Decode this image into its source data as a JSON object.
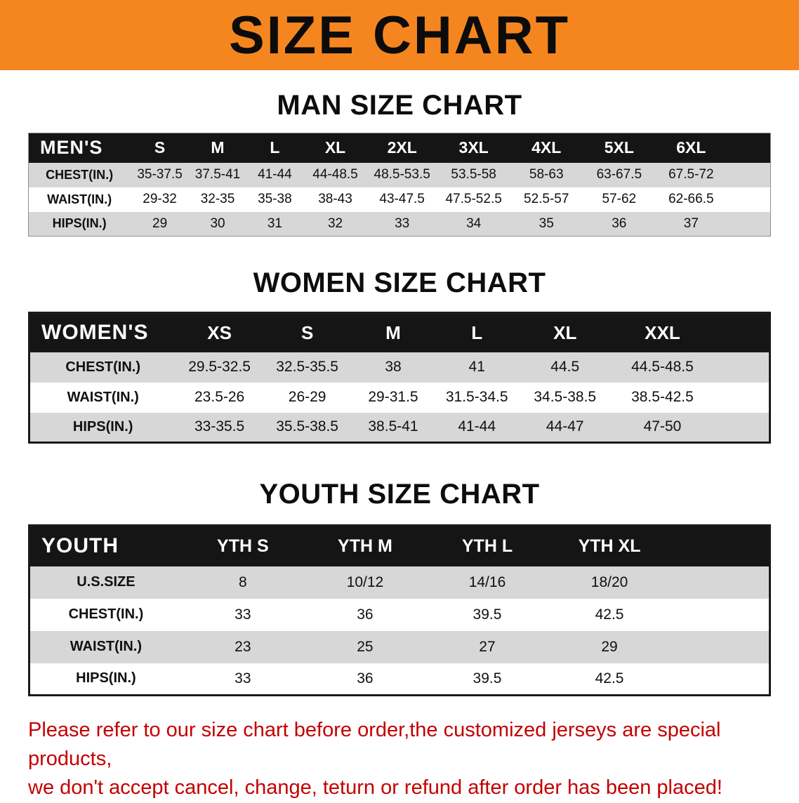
{
  "colors": {
    "banner-bg": "#f5861f",
    "header-bg": "#151515",
    "row-gray": "#d7d7d7",
    "disclaimer-red": "#c40000"
  },
  "banner": {
    "title": "SIZE CHART"
  },
  "men": {
    "heading": "MAN SIZE CHART",
    "table": {
      "header": [
        "MEN'S",
        "S",
        "M",
        "L",
        "XL",
        "2XL",
        "3XL",
        "4XL",
        "5XL",
        "6XL"
      ],
      "rows": [
        [
          "CHEST(IN.)",
          "35-37.5",
          "37.5-41",
          "41-44",
          "44-48.5",
          "48.5-53.5",
          "53.5-58",
          "58-63",
          "63-67.5",
          "67.5-72"
        ],
        [
          "WAIST(IN.)",
          "29-32",
          "32-35",
          "35-38",
          "38-43",
          "43-47.5",
          "47.5-52.5",
          "52.5-57",
          "57-62",
          "62-66.5"
        ],
        [
          "HIPS(IN.)",
          "29",
          "30",
          "31",
          "32",
          "33",
          "34",
          "35",
          "36",
          "37"
        ]
      ]
    }
  },
  "women": {
    "heading": "WOMEN SIZE CHART",
    "table": {
      "header": [
        "WOMEN'S",
        "XS",
        "S",
        "M",
        "L",
        "XL",
        "XXL"
      ],
      "rows": [
        [
          "CHEST(IN.)",
          "29.5-32.5",
          "32.5-35.5",
          "38",
          "41",
          "44.5",
          "44.5-48.5"
        ],
        [
          "WAIST(IN.)",
          "23.5-26",
          "26-29",
          "29-31.5",
          "31.5-34.5",
          "34.5-38.5",
          "38.5-42.5"
        ],
        [
          "HIPS(IN.)",
          "33-35.5",
          "35.5-38.5",
          "38.5-41",
          "41-44",
          "44-47",
          "47-50"
        ]
      ]
    }
  },
  "youth": {
    "heading": "YOUTH SIZE CHART",
    "table": {
      "header": [
        "YOUTH",
        "YTH S",
        "YTH M",
        "YTH L",
        "YTH XL"
      ],
      "rows": [
        [
          "U.S.SIZE",
          "8",
          "10/12",
          "14/16",
          "18/20"
        ],
        [
          "CHEST(IN.)",
          "33",
          "36",
          "39.5",
          "42.5"
        ],
        [
          "WAIST(IN.)",
          "23",
          "25",
          "27",
          "29"
        ],
        [
          "HIPS(IN.)",
          "33",
          "36",
          "39.5",
          "42.5"
        ]
      ]
    }
  },
  "disclaimer": {
    "line1": "Please refer to our size chart before order,the customized jerseys are special products,",
    "line2": "we don't accept cancel, change, teturn or refund after order has been placed!"
  }
}
